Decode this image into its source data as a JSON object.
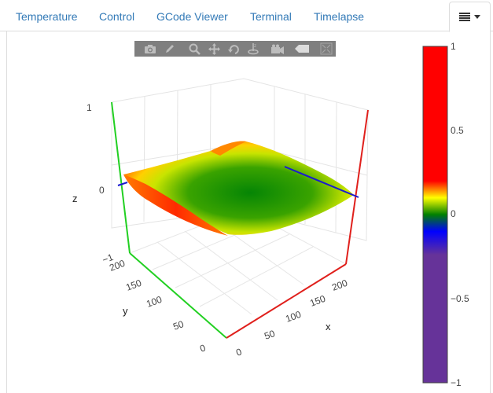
{
  "tabs": [
    {
      "label": "Temperature"
    },
    {
      "label": "Control"
    },
    {
      "label": "GCode Viewer"
    },
    {
      "label": "Terminal"
    },
    {
      "label": "Timelapse"
    }
  ],
  "menu_icon": "hamburger-menu-icon",
  "modebar": {
    "icons": [
      "camera-icon",
      "pencil-icon",
      "zoom-icon",
      "pan-icon",
      "orbit-icon",
      "turntable-icon",
      "camera-reset-icon",
      "tag-icon",
      "plotly-logo-icon"
    ]
  },
  "chart_data": {
    "type": "surface",
    "axes": {
      "x": {
        "label": "x",
        "range": [
          0,
          220
        ],
        "ticks": [
          "0",
          "50",
          "100",
          "150",
          "200"
        ],
        "color": "#e0201c"
      },
      "y": {
        "label": "y",
        "range": [
          0,
          220
        ],
        "ticks": [
          "0",
          "50",
          "100",
          "150",
          "200"
        ],
        "color": "#22d022"
      },
      "z": {
        "label": "z",
        "range": [
          -1,
          1
        ],
        "ticks": [
          "−1",
          "0",
          "1"
        ],
        "color": "#1a1ad0"
      }
    },
    "surface_grid_z": [
      [
        0.35,
        0.2,
        0.1,
        0.05,
        0.05,
        0.1,
        0.18
      ],
      [
        0.22,
        0.08,
        -0.04,
        -0.08,
        -0.08,
        -0.02,
        0.08
      ],
      [
        0.1,
        -0.05,
        -0.1,
        -0.12,
        -0.12,
        -0.06,
        0.02
      ],
      [
        0.25,
        0.02,
        -0.08,
        -0.12,
        -0.1,
        -0.04,
        0.05
      ],
      [
        0.45,
        0.22,
        0.05,
        -0.04,
        -0.04,
        0.02,
        0.12
      ]
    ],
    "colorbar": {
      "min": -1,
      "max": 1,
      "tick_labels": [
        "1",
        "0.5",
        "0",
        "−0.5",
        "−1"
      ],
      "colors": [
        "#ff0000",
        "#ffff00",
        "#008000",
        "#0000ff",
        "#663399"
      ]
    }
  }
}
